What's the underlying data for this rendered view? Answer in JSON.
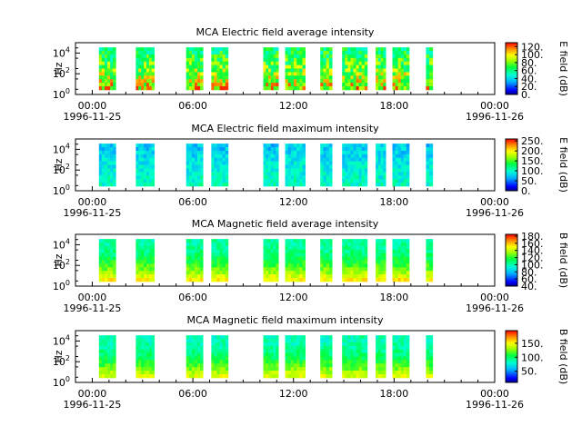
{
  "chart_data": [
    {
      "type": "heatmap",
      "title": "MCA  Electric field average intensity",
      "ylabel": "Hz",
      "colorbar_label": "E field (dB)",
      "colorbar_ticks": [
        "0.",
        "20.",
        "40.",
        "60.",
        "80.",
        "100.",
        "120."
      ],
      "colorbar_range": [
        0,
        130
      ],
      "y_ticks": [
        {
          "base": "10",
          "exp": "0"
        },
        {
          "base": "10",
          "exp": "2"
        },
        {
          "base": "10",
          "exp": "4"
        }
      ],
      "y_scale": "log",
      "x_ticks": [
        "00:00",
        "06:00",
        "12:00",
        "18:00",
        "00:00"
      ],
      "x_start_date": "1996-11-25",
      "x_end_date": "1996-11-26",
      "x_range_hours": [
        -1,
        24
      ],
      "data_blocks_hours": [
        [
          0.4,
          1.4
        ],
        [
          2.6,
          3.7
        ],
        [
          5.6,
          6.6
        ],
        [
          7.1,
          8.1
        ],
        [
          10.2,
          11.1
        ],
        [
          11.5,
          12.7
        ],
        [
          13.6,
          14.3
        ],
        [
          14.9,
          16.4
        ],
        [
          16.9,
          17.5
        ],
        [
          17.9,
          18.9
        ],
        [
          19.9,
          20.3
        ]
      ]
    },
    {
      "type": "heatmap",
      "title": "MCA  Electric field maximum intensity",
      "ylabel": "Hz",
      "colorbar_label": "E field (dB)",
      "colorbar_ticks": [
        "0.",
        "50.",
        "100.",
        "150.",
        "200.",
        "250."
      ],
      "colorbar_range": [
        0,
        260
      ],
      "y_ticks": [
        {
          "base": "10",
          "exp": "0"
        },
        {
          "base": "10",
          "exp": "2"
        },
        {
          "base": "10",
          "exp": "4"
        }
      ],
      "y_scale": "log",
      "x_ticks": [
        "00:00",
        "06:00",
        "12:00",
        "18:00",
        "00:00"
      ],
      "x_start_date": "1996-11-25",
      "x_end_date": "1996-11-26",
      "x_range_hours": [
        -1,
        24
      ],
      "data_blocks_hours": [
        [
          0.4,
          1.4
        ],
        [
          2.6,
          3.7
        ],
        [
          5.6,
          6.6
        ],
        [
          7.1,
          8.1
        ],
        [
          10.2,
          11.1
        ],
        [
          11.5,
          12.7
        ],
        [
          13.6,
          14.3
        ],
        [
          14.9,
          16.4
        ],
        [
          16.9,
          17.5
        ],
        [
          17.9,
          18.9
        ],
        [
          19.9,
          20.3
        ]
      ]
    },
    {
      "type": "heatmap",
      "title": "MCA  Magnetic field average intensity",
      "ylabel": "Hz",
      "colorbar_label": "B field (dB)",
      "colorbar_ticks": [
        "40.",
        "60.",
        "80.",
        "100.",
        "120.",
        "140.",
        "160.",
        "180."
      ],
      "colorbar_range": [
        40,
        185
      ],
      "y_ticks": [
        {
          "base": "10",
          "exp": "0"
        },
        {
          "base": "10",
          "exp": "2"
        },
        {
          "base": "10",
          "exp": "4"
        }
      ],
      "y_scale": "log",
      "x_ticks": [
        "00:00",
        "06:00",
        "12:00",
        "18:00",
        "00:00"
      ],
      "x_start_date": "1996-11-25",
      "x_end_date": "1996-11-26",
      "x_range_hours": [
        -1,
        24
      ],
      "data_blocks_hours": [
        [
          0.4,
          1.4
        ],
        [
          2.6,
          3.7
        ],
        [
          5.6,
          6.6
        ],
        [
          7.1,
          8.1
        ],
        [
          10.2,
          11.1
        ],
        [
          11.5,
          12.7
        ],
        [
          13.6,
          14.3
        ],
        [
          14.9,
          16.4
        ],
        [
          16.9,
          17.5
        ],
        [
          17.9,
          18.9
        ],
        [
          19.9,
          20.3
        ]
      ]
    },
    {
      "type": "heatmap",
      "title": "MCA  Magnetic field maximum intensity",
      "ylabel": "Hz",
      "colorbar_label": "B field (dB)",
      "colorbar_ticks": [
        "50.",
        "100.",
        "150."
      ],
      "colorbar_range": [
        10,
        195
      ],
      "y_ticks": [
        {
          "base": "10",
          "exp": "0"
        },
        {
          "base": "10",
          "exp": "2"
        },
        {
          "base": "10",
          "exp": "4"
        }
      ],
      "y_scale": "log",
      "x_ticks": [
        "00:00",
        "06:00",
        "12:00",
        "18:00",
        "00:00"
      ],
      "x_start_date": "1996-11-25",
      "x_end_date": "1996-11-26",
      "x_range_hours": [
        -1,
        24
      ],
      "data_blocks_hours": [
        [
          0.4,
          1.4
        ],
        [
          2.6,
          3.7
        ],
        [
          5.6,
          6.6
        ],
        [
          7.1,
          8.1
        ],
        [
          10.2,
          11.1
        ],
        [
          11.5,
          12.7
        ],
        [
          13.6,
          14.3
        ],
        [
          14.9,
          16.4
        ],
        [
          16.9,
          17.5
        ],
        [
          17.9,
          18.9
        ],
        [
          19.9,
          20.3
        ]
      ]
    }
  ]
}
